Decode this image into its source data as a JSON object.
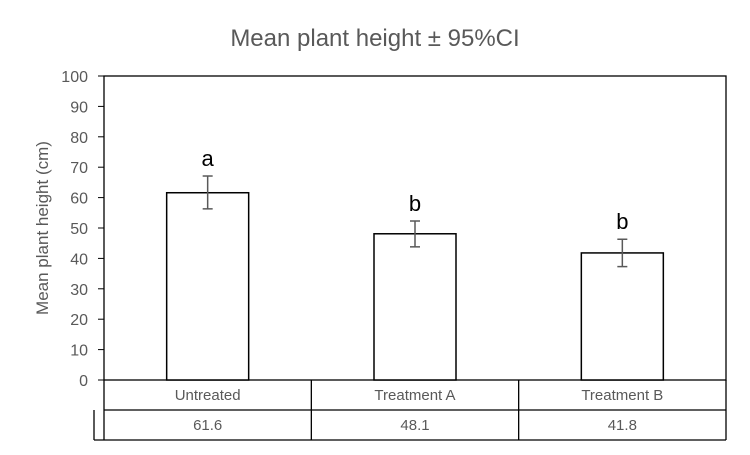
{
  "chart_data": {
    "type": "bar",
    "title": "Mean plant height ± 95%CI",
    "ylabel": "Mean plant height (cm)",
    "xlabel": "",
    "ylim": [
      0,
      100
    ],
    "yticks": [
      0,
      10,
      20,
      30,
      40,
      50,
      60,
      70,
      80,
      90,
      100
    ],
    "categories": [
      "Untreated",
      "Treatment A",
      "Treatment B"
    ],
    "values": [
      61.6,
      48.1,
      41.8
    ],
    "error_lower": [
      56.3,
      43.8,
      37.3
    ],
    "error_upper": [
      67.1,
      52.3,
      46.3
    ],
    "significance_letters": [
      "a",
      "b",
      "b"
    ],
    "data_table_values": [
      "61.6",
      "48.1",
      "41.8"
    ],
    "grid": false,
    "legend": "none",
    "colors": {
      "bar_fill": "#ffffff",
      "bar_stroke": "#000000",
      "axis_text": "#595959",
      "error_bar": "#595959"
    }
  }
}
